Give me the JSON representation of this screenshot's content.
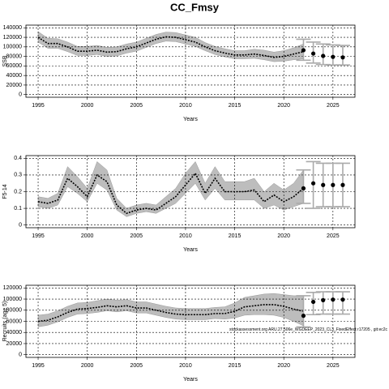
{
  "chart_data": [
    {
      "type": "band-line",
      "title": "CC_Fmsy",
      "xlabel": "Years",
      "ylabel": "SSB",
      "xlim": [
        1993.76,
        2027.24
      ],
      "xticks": [
        1995,
        2000,
        2005,
        2010,
        2015,
        2020,
        2025
      ],
      "ylim": [
        -5600,
        145600
      ],
      "yticks": [
        0,
        20000,
        40000,
        60000,
        80000,
        100000,
        120000,
        140000
      ],
      "grid": true,
      "x": [
        1995,
        1996,
        1997,
        1998,
        1999,
        2000,
        2001,
        2002,
        2003,
        2004,
        2005,
        2006,
        2007,
        2008,
        2009,
        2010,
        2011,
        2012,
        2013,
        2014,
        2015,
        2016,
        2017,
        2018,
        2019,
        2020,
        2021,
        2022
      ],
      "median": [
        120000,
        107000,
        107000,
        100000,
        91000,
        91000,
        93000,
        89000,
        90000,
        96000,
        100000,
        108000,
        116000,
        121000,
        120000,
        115000,
        110000,
        100000,
        92000,
        87000,
        83000,
        83000,
        85000,
        82000,
        78000,
        80000,
        85000,
        90000
      ],
      "lower": [
        110000,
        97000,
        97000,
        90000,
        82000,
        82000,
        84000,
        80000,
        81000,
        87000,
        91000,
        99000,
        107000,
        112000,
        111000,
        106000,
        101000,
        92000,
        84000,
        79000,
        75000,
        75000,
        76000,
        73000,
        69000,
        70000,
        73000,
        75000
      ],
      "upper": [
        132000,
        118000,
        117000,
        110000,
        101000,
        101000,
        103000,
        99000,
        100000,
        106000,
        110000,
        118000,
        126000,
        131000,
        130000,
        125000,
        120000,
        109000,
        101000,
        96000,
        92000,
        92000,
        95000,
        93000,
        89000,
        92000,
        98000,
        106000
      ],
      "projection": {
        "x": [
          2022,
          2023,
          2024,
          2025,
          2026
        ],
        "median": [
          93000,
          86000,
          81000,
          79000,
          78000
        ],
        "lower": [
          72000,
          66000,
          63000,
          62000,
          62000
        ],
        "upper": [
          116000,
          110000,
          106000,
          104000,
          103000
        ]
      }
    },
    {
      "type": "band-line",
      "xlabel": "Years",
      "ylabel": "F5-14",
      "xlim": [
        1993.76,
        2027.24
      ],
      "xticks": [
        1995,
        2000,
        2005,
        2010,
        2015,
        2020,
        2025
      ],
      "ylim": [
        -0.016,
        0.416
      ],
      "yticks": [
        0,
        0.1,
        0.2,
        0.3,
        0.4
      ],
      "grid": true,
      "x": [
        1995,
        1996,
        1997,
        1998,
        1999,
        2000,
        2001,
        2002,
        2003,
        2004,
        2005,
        2006,
        2007,
        2008,
        2009,
        2010,
        2011,
        2012,
        2013,
        2014,
        2015,
        2016,
        2017,
        2018,
        2019,
        2020,
        2021,
        2022
      ],
      "median": [
        0.14,
        0.13,
        0.15,
        0.28,
        0.23,
        0.17,
        0.3,
        0.26,
        0.12,
        0.07,
        0.09,
        0.1,
        0.09,
        0.13,
        0.17,
        0.24,
        0.31,
        0.19,
        0.28,
        0.2,
        0.2,
        0.2,
        0.21,
        0.14,
        0.18,
        0.14,
        0.17,
        0.22
      ],
      "lower": [
        0.11,
        0.1,
        0.12,
        0.23,
        0.19,
        0.14,
        0.25,
        0.21,
        0.09,
        0.05,
        0.07,
        0.08,
        0.07,
        0.1,
        0.13,
        0.19,
        0.25,
        0.15,
        0.22,
        0.15,
        0.15,
        0.15,
        0.15,
        0.1,
        0.12,
        0.09,
        0.11,
        0.13
      ],
      "upper": [
        0.17,
        0.16,
        0.19,
        0.35,
        0.29,
        0.22,
        0.38,
        0.33,
        0.16,
        0.1,
        0.12,
        0.13,
        0.12,
        0.17,
        0.22,
        0.31,
        0.38,
        0.25,
        0.35,
        0.26,
        0.26,
        0.26,
        0.28,
        0.2,
        0.25,
        0.21,
        0.25,
        0.33
      ],
      "projection": {
        "x": [
          2022,
          2023,
          2024,
          2025,
          2026
        ],
        "median": [
          0.22,
          0.25,
          0.24,
          0.24,
          0.24
        ],
        "lower": [
          0.13,
          0.1,
          0.11,
          0.11,
          0.11
        ],
        "upper": [
          0.33,
          0.38,
          0.37,
          0.37,
          0.37
        ]
      }
    },
    {
      "type": "band-line",
      "xlabel": "Years",
      "ylabel": "Recruits (age 5)",
      "annotation": "stockassessment.org ARU.27.506e_WGDEEP_2023_CL3_FixedEffect r17205 , git:ec2c",
      "xlim": [
        1993.76,
        2027.24
      ],
      "xticks": [
        1995,
        2000,
        2005,
        2010,
        2015,
        2020,
        2025
      ],
      "ylim": [
        -4800,
        124800
      ],
      "yticks": [
        0,
        20000,
        40000,
        60000,
        80000,
        100000,
        120000
      ],
      "grid": true,
      "x": [
        1995,
        1996,
        1997,
        1998,
        1999,
        2000,
        2001,
        2002,
        2003,
        2004,
        2005,
        2006,
        2007,
        2008,
        2009,
        2010,
        2011,
        2012,
        2013,
        2014,
        2015,
        2016,
        2017,
        2018,
        2019,
        2020,
        2021,
        2022
      ],
      "median": [
        60000,
        62000,
        68000,
        76000,
        82000,
        83000,
        85000,
        88000,
        86000,
        88000,
        84000,
        84000,
        80000,
        76000,
        73000,
        72000,
        72000,
        72000,
        74000,
        74000,
        78000,
        86000,
        88000,
        90000,
        90000,
        87000,
        82000,
        78000
      ],
      "lower": [
        50000,
        53000,
        59000,
        67000,
        73000,
        74000,
        76000,
        79000,
        77000,
        79000,
        75000,
        75000,
        71000,
        67000,
        64000,
        63000,
        63000,
        63000,
        65000,
        64000,
        66000,
        71000,
        72000,
        72000,
        71000,
        67000,
        60000,
        52000
      ],
      "upper": [
        71000,
        73000,
        79000,
        87000,
        93000,
        94000,
        97000,
        100000,
        98000,
        99000,
        95000,
        95000,
        91000,
        87000,
        84000,
        83000,
        83000,
        83000,
        85000,
        86000,
        93000,
        103000,
        106000,
        109000,
        110000,
        108000,
        106000,
        106000
      ],
      "projection": {
        "x": [
          2022,
          2023,
          2024,
          2025,
          2026
        ],
        "median": [
          70000,
          95000,
          98000,
          99000,
          99000
        ],
        "lower": [
          50000,
          72000,
          73000,
          73000,
          73000
        ],
        "upper": [
          106000,
          112000,
          113000,
          113000,
          113000
        ]
      }
    }
  ]
}
